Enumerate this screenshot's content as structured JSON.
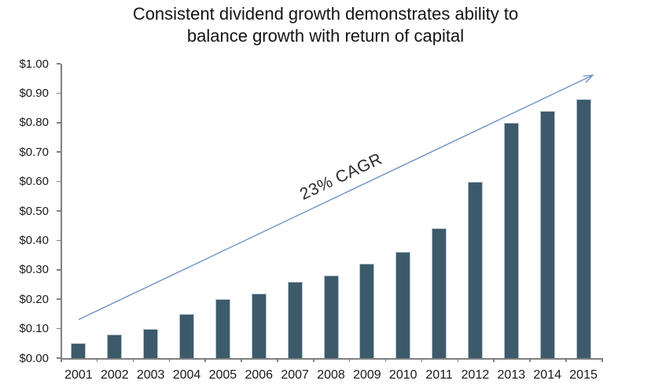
{
  "title": {
    "line1": "Consistent dividend growth demonstrates ability to",
    "line2": "balance growth with return of capital"
  },
  "chart_data": {
    "type": "bar",
    "title": "Consistent dividend growth demonstrates ability to balance growth with return of capital",
    "categories": [
      "2001",
      "2002",
      "2003",
      "2004",
      "2005",
      "2006",
      "2007",
      "2008",
      "2009",
      "2010",
      "2011",
      "2012",
      "2013",
      "2014",
      "2015"
    ],
    "values": [
      0.05,
      0.08,
      0.1,
      0.15,
      0.2,
      0.22,
      0.26,
      0.28,
      0.32,
      0.36,
      0.44,
      0.6,
      0.8,
      0.84,
      0.88
    ],
    "xlabel": "",
    "ylabel": "",
    "ylim": [
      0,
      1.0
    ],
    "y_tick_labels": [
      "$0.00",
      "$0.10",
      "$0.20",
      "$0.30",
      "$0.40",
      "$0.50",
      "$0.60",
      "$0.70",
      "$0.80",
      "$0.90",
      "$1.00"
    ],
    "y_tick_values": [
      0,
      0.1,
      0.2,
      0.3,
      0.4,
      0.5,
      0.6,
      0.7,
      0.8,
      0.9,
      1.0
    ],
    "grid": false,
    "legend": "none",
    "annotation": "23% CAGR",
    "annotation_rotation_deg": -25,
    "colors": {
      "bar": "#3d5a6b",
      "bar_border": "#b7c4cb",
      "arrow": "#7193c6",
      "axis": "#808080",
      "label_text": "#1a1a1a",
      "title_text": "#141414",
      "background": "#ffffff"
    }
  }
}
